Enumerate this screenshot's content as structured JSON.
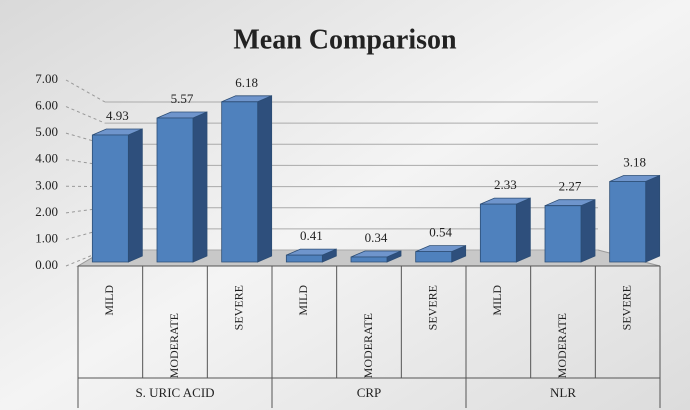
{
  "chart_data": {
    "type": "bar",
    "title": "Mean Comparison",
    "color": "#4f81bd",
    "grid": true,
    "ylim": [
      0,
      7
    ],
    "yticks": [
      {
        "value": 0,
        "label": "0.00"
      },
      {
        "value": 1,
        "label": "1.00"
      },
      {
        "value": 2,
        "label": "2.00"
      },
      {
        "value": 3,
        "label": "3.00"
      },
      {
        "value": 4,
        "label": "4.00"
      },
      {
        "value": 5,
        "label": "5.00"
      },
      {
        "value": 6,
        "label": "6.00"
      },
      {
        "value": 7,
        "label": "7.00"
      }
    ],
    "groups": [
      {
        "name": "S. URIC ACID",
        "categories": [
          "MILD",
          "MODERATE",
          "SEVERE"
        ],
        "values": [
          4.93,
          5.57,
          6.18
        ]
      },
      {
        "name": "CRP",
        "categories": [
          "MILD",
          "MODERATE",
          "SEVERE"
        ],
        "values": [
          0.41,
          0.34,
          0.54
        ]
      },
      {
        "name": "NLR",
        "categories": [
          "MILD",
          "MODERATE",
          "SEVERE"
        ],
        "values": [
          2.33,
          2.27,
          3.18
        ]
      }
    ]
  }
}
